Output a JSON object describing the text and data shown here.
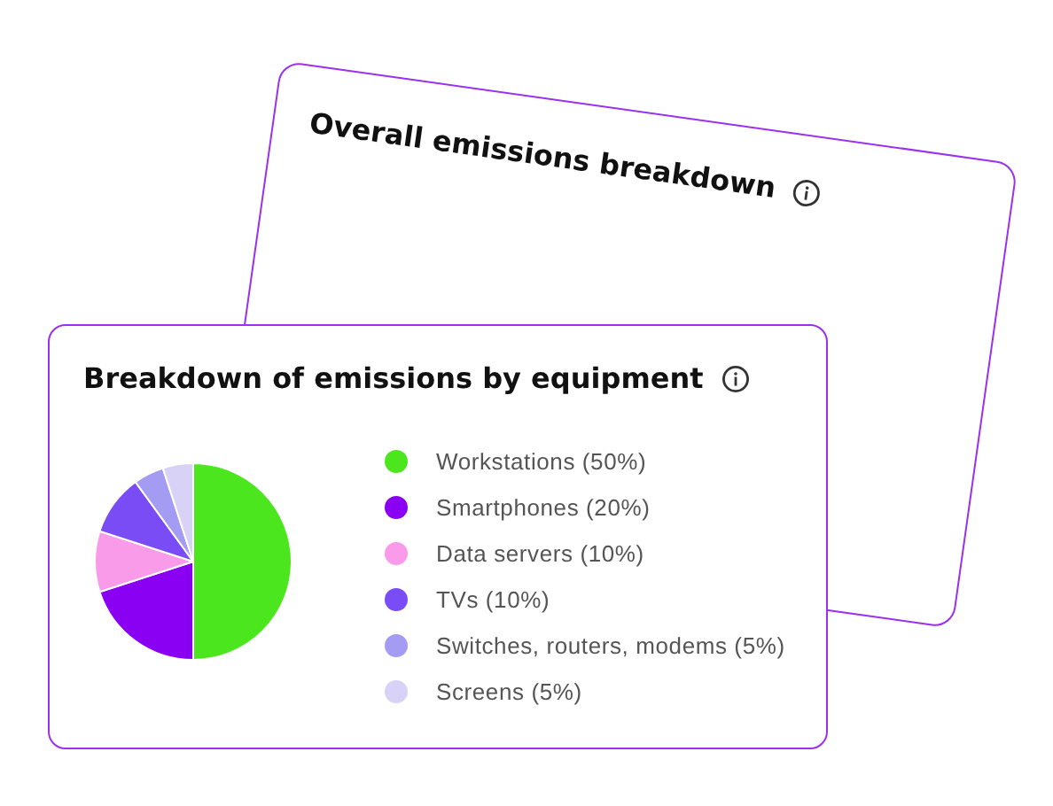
{
  "chart_data": [
    {
      "type": "other",
      "title": "Overall emissions breakdown"
    },
    {
      "type": "pie",
      "title": "Breakdown of emissions by equipment",
      "categories": [
        "Workstations (50%)",
        "Smartphones (20%)",
        "Data servers (10%)",
        "TVs (10%)",
        "Switches, routers, modems (5%)",
        "Screens (5%)"
      ],
      "values": [
        50,
        20,
        10,
        10,
        5,
        5
      ],
      "colors": [
        "#4ce61e",
        "#8a00f2",
        "#f99be9",
        "#7a4cf6",
        "#a49cf2",
        "#d7d2f6"
      ],
      "legend": "right"
    }
  ]
}
